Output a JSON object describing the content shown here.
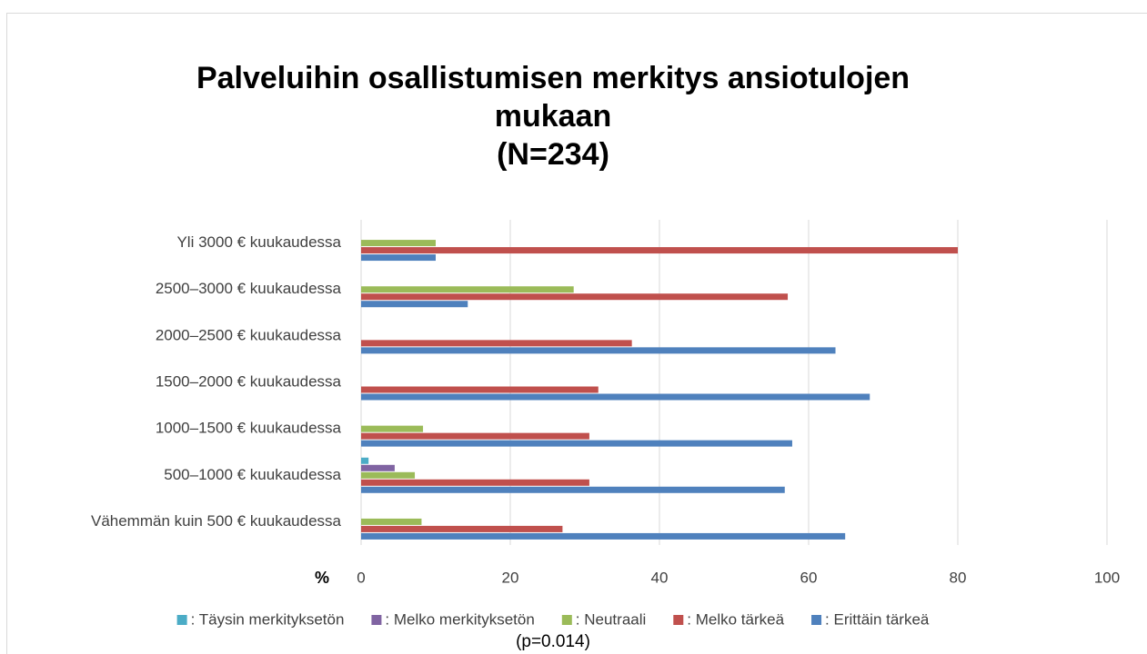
{
  "chart_data": {
    "type": "barh",
    "title": [
      "Palveluihin osallistumisen merkitys ansiotulojen",
      "mukaan",
      "(N=234)"
    ],
    "xlabel": "%",
    "note": "(p=0.014)",
    "categories": [
      "Yli 3000 € kuukaudessa",
      "2500–3000 € kuukaudessa",
      "2000–2500 € kuukaudessa",
      "1500–2000 € kuukaudessa",
      "1000–1500 € kuukaudessa",
      "500–1000 € kuukaudessa",
      "Vähemmän kuin 500 € kuukaudessa"
    ],
    "series": [
      {
        "name": ": Täysin merkityksetön",
        "color": "#4bacc6",
        "values": [
          0,
          0,
          0,
          0,
          0,
          1,
          0
        ]
      },
      {
        "name": ": Melko merkityksetön",
        "color": "#8064a2",
        "values": [
          0,
          0,
          0,
          0,
          0,
          4.5,
          0
        ]
      },
      {
        "name": ": Neutraali",
        "color": "#9bbb59",
        "values": [
          10,
          28.5,
          0,
          0,
          8.3,
          7.2,
          8.1
        ]
      },
      {
        "name": ": Melko tärkeä",
        "color": "#c0504d",
        "values": [
          80,
          57.2,
          36.3,
          31.8,
          30.6,
          30.6,
          27
        ]
      },
      {
        "name": ": Erittäin tärkeä",
        "color": "#4f81bd",
        "values": [
          10,
          14.3,
          63.6,
          68.2,
          57.8,
          56.8,
          64.9
        ]
      }
    ],
    "xlim": [
      0,
      100
    ],
    "xticks": [
      0,
      20,
      40,
      60,
      80,
      100
    ],
    "grid": true,
    "legend": "bottom"
  }
}
